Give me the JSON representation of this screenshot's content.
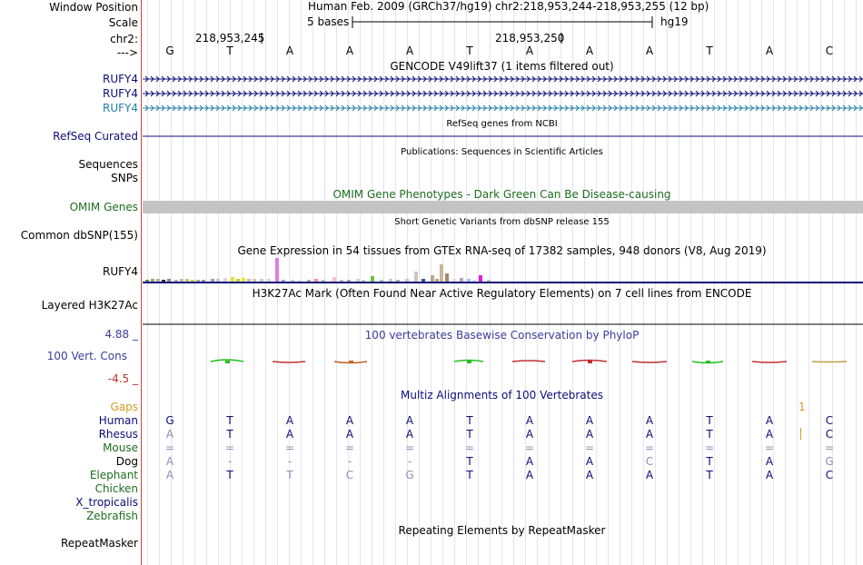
{
  "side_labels": {
    "window_position": "Window Position",
    "scale": "Scale",
    "chrom": "chr2:",
    "strand": "--->",
    "rufy4_1": "RUFY4",
    "rufy4_2": "RUFY4",
    "rufy4_3": "RUFY4",
    "refseq": "RefSeq Curated",
    "sequences": "Sequences",
    "snps": "SNPs",
    "omim": "OMIM Genes",
    "dbsnp": "Common dbSNP(155)",
    "gtex_gene": "RUFY4",
    "h3k27ac": "Layered H3K27Ac",
    "phylop_max": "4.88 _",
    "phylop_label": "100 Vert. Cons",
    "phylop_min": "-4.5 _",
    "gaps": "Gaps",
    "human": "Human",
    "rhesus": "Rhesus",
    "mouse": "Mouse",
    "dog": "Dog",
    "elephant": "Elephant",
    "chicken": "Chicken",
    "xtrop": "X_tropicalis",
    "zebrafish": "Zebrafish",
    "repeatmasker": "RepeatMasker"
  },
  "header": {
    "assembly": "Human Feb. 2009 (GRCh37/hg19)",
    "position": "chr2:218,953,244-218,953,255 (12 bp)",
    "scale_label": "5 bases",
    "scale_db": "hg19",
    "coord_1": "218,953,245",
    "coord_2": "218,953,250"
  },
  "bases": [
    "G",
    "T",
    "A",
    "A",
    "A",
    "T",
    "A",
    "A",
    "A",
    "T",
    "A",
    "C"
  ],
  "track_titles": {
    "gencode": "GENCODE V49lift37 (1 items filtered out)",
    "refseq": "RefSeq genes from NCBI",
    "publications": "Publications: Sequences in Scientific Articles",
    "omim": "OMIM Gene Phenotypes - Dark Green Can Be Disease-causing",
    "dbsnp": "Short Genetic Variants from dbSNP release 155",
    "gtex": "Gene Expression in 54 tissues from GTEx RNA-seq of 17382 samples, 948 donors (V8, Aug 2019)",
    "h3k27ac": "H3K27Ac Mark (Often Found Near Active Regulatory Elements) on 7 cell lines from ENCODE",
    "phylop": "100 vertebrates Basewise Conservation by PhyloP",
    "multiz": "Multiz Alignments of 100 Vertebrates",
    "repeatmasker": "Repeating Elements by RepeatMasker"
  },
  "gaps_marker": "1",
  "alignments": {
    "human": [
      "G",
      "T",
      "A",
      "A",
      "A",
      "T",
      "A",
      "A",
      "A",
      "T",
      "A",
      "C"
    ],
    "rhesus": [
      "A",
      "T",
      "A",
      "A",
      "A",
      "T",
      "A",
      "A",
      "A",
      "T",
      "A",
      "C"
    ],
    "mouse": [
      "=",
      "=",
      "=",
      "=",
      "=",
      "=",
      "=",
      "=",
      "=",
      "=",
      "=",
      "="
    ],
    "dog": [
      "A",
      "-",
      "-",
      "-",
      "-",
      "T",
      "A",
      "A",
      "C",
      "T",
      "A",
      "G"
    ],
    "elephant": [
      "A",
      "T",
      "T",
      "C",
      "G",
      "T",
      "A",
      "A",
      "A",
      "T",
      "A",
      "C"
    ]
  },
  "alignment_match": {
    "rhesus": [
      false,
      true,
      true,
      true,
      true,
      true,
      true,
      true,
      true,
      true,
      true,
      true
    ],
    "mouse": [
      false,
      false,
      false,
      false,
      false,
      false,
      false,
      false,
      false,
      false,
      false,
      false
    ],
    "dog": [
      false,
      false,
      false,
      false,
      false,
      true,
      true,
      true,
      false,
      true,
      true,
      false
    ],
    "elephant": [
      false,
      true,
      false,
      false,
      false,
      true,
      true,
      true,
      true,
      true,
      true,
      true
    ]
  },
  "colors": {
    "gene_blue": "#0c0c78",
    "gene_teal": "#1f7fa8",
    "omim_green": "#1d6d1d",
    "phylop_blue": "#3c3c9c",
    "gaps_orange": "#d79a24",
    "mismatch_gray": "#8d8db8",
    "separator": "#cc4444"
  }
}
